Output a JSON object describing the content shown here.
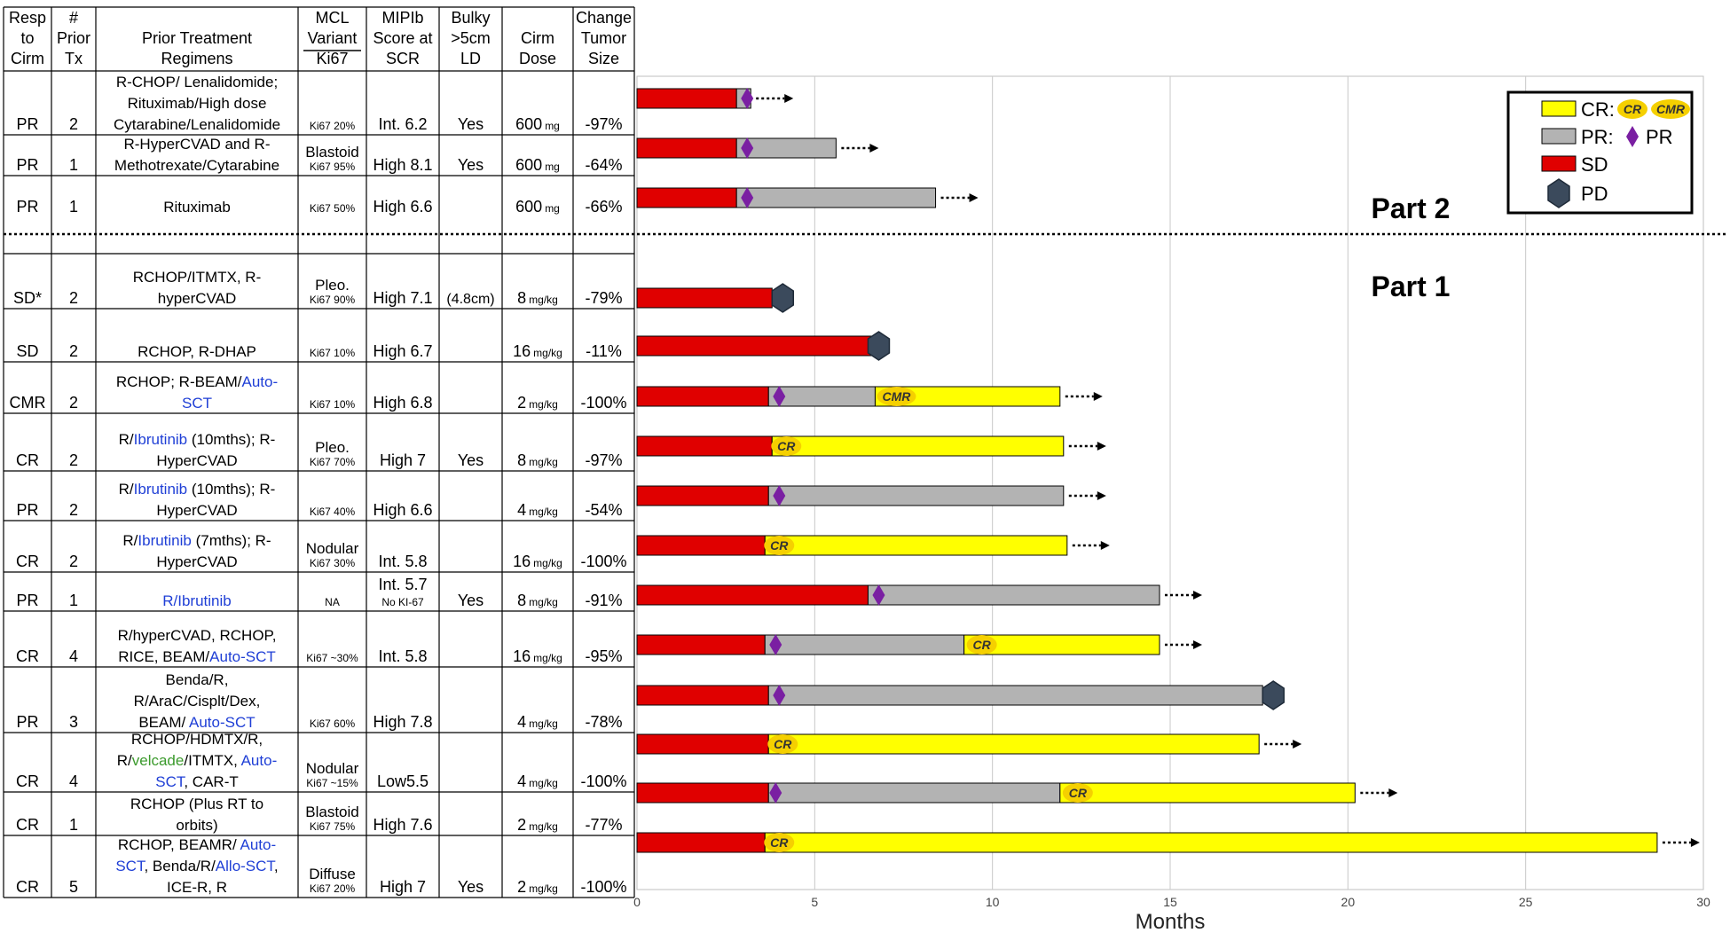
{
  "table": {
    "headers": [
      [
        "Resp",
        "to",
        "Cirm"
      ],
      [
        "#",
        "Prior",
        "Tx"
      ],
      [
        "Prior Treatment",
        "Regimens"
      ],
      [
        "MCL",
        "Variant",
        "Ki67"
      ],
      [
        "MIPIb",
        "Score at",
        "SCR"
      ],
      [
        "Bulky",
        ">5cm",
        "LD"
      ],
      [
        "Cirm",
        "Dose"
      ],
      [
        "Change",
        "Tumor",
        "Size"
      ]
    ],
    "rows": [
      {
        "resp": "PR",
        "prior": "2",
        "regimen": [
          [
            {
              "t": "R-CHOP/ Lenalidomide;"
            }
          ],
          [
            {
              "t": "Rituximab/High dose"
            }
          ],
          [
            {
              "t": "Cytarabine/Lenalidomide"
            }
          ]
        ],
        "variant": [],
        "ki67": "Ki67 20%",
        "mipi": "Int. 6.2",
        "mipi_sub": "",
        "bulky": "Yes",
        "dose": "600",
        "dose_unit": "mg",
        "change": "-97%"
      },
      {
        "resp": "PR",
        "prior": "1",
        "regimen": [
          [
            {
              "t": "R-HyperCVAD and R-"
            }
          ],
          [
            {
              "t": "Methotrexate/Cytarabine"
            }
          ]
        ],
        "variant": [
          "Blastoid"
        ],
        "ki67": "Ki67 95%",
        "mipi": "High 8.1",
        "mipi_sub": "",
        "bulky": "Yes",
        "dose": "600",
        "dose_unit": "mg",
        "change": "-64%"
      },
      {
        "resp": "PR",
        "prior": "1",
        "regimen": [
          [
            {
              "t": "Rituximab"
            }
          ]
        ],
        "variant": [],
        "ki67": "Ki67 50%",
        "mipi": "High 6.6",
        "mipi_sub": "",
        "bulky": "",
        "dose": "600",
        "dose_unit": "mg",
        "change": "-66%"
      },
      {
        "resp": "SD*",
        "prior": "2",
        "regimen": [
          [
            {
              "t": "RCHOP/ITMTX, R-"
            }
          ],
          [
            {
              "t": "hyperCVAD"
            }
          ]
        ],
        "variant": [
          "Pleo."
        ],
        "ki67": "Ki67 90%",
        "mipi": "High 7.1",
        "mipi_sub": "",
        "bulky": "(4.8cm)",
        "dose": "8",
        "dose_unit": "mg/kg",
        "change": "-79%"
      },
      {
        "resp": "SD",
        "prior": "2",
        "regimen": [
          [
            {
              "t": "RCHOP, R-DHAP"
            }
          ]
        ],
        "variant": [],
        "ki67": "Ki67 10%",
        "mipi": "High 6.7",
        "mipi_sub": "",
        "bulky": "",
        "dose": "16",
        "dose_unit": "mg/kg",
        "change": "-11%"
      },
      {
        "resp": "CMR",
        "prior": "2",
        "regimen": [
          [
            {
              "t": "RCHOP; R-BEAM/"
            },
            {
              "t": "Auto-",
              "c": "blue"
            }
          ],
          [
            {
              "t": "SCT",
              "c": "blue"
            }
          ]
        ],
        "variant": [],
        "ki67": "Ki67 10%",
        "mipi": "High 6.8",
        "mipi_sub": "",
        "bulky": "",
        "dose": "2",
        "dose_unit": "mg/kg",
        "change": "-100%"
      },
      {
        "resp": "CR",
        "prior": "2",
        "regimen": [
          [
            {
              "t": "R/"
            },
            {
              "t": "Ibrutinib",
              "c": "blue"
            },
            {
              "t": " (10mths); R-"
            }
          ],
          [
            {
              "t": "HyperCVAD"
            }
          ]
        ],
        "variant": [
          "Pleo."
        ],
        "ki67": "Ki67 70%",
        "mipi": "High 7",
        "mipi_sub": "",
        "bulky": "Yes",
        "dose": "8",
        "dose_unit": "mg/kg",
        "change": "-97%"
      },
      {
        "resp": "PR",
        "prior": "2",
        "regimen": [
          [
            {
              "t": "R/"
            },
            {
              "t": "Ibrutinib",
              "c": "blue"
            },
            {
              "t": " (10mths); R-"
            }
          ],
          [
            {
              "t": "HyperCVAD"
            }
          ]
        ],
        "variant": [],
        "ki67": "Ki67 40%",
        "mipi": "High 6.6",
        "mipi_sub": "",
        "bulky": "",
        "dose": "4",
        "dose_unit": "mg/kg",
        "change": "-54%"
      },
      {
        "resp": "CR",
        "prior": "2",
        "regimen": [
          [
            {
              "t": "R/"
            },
            {
              "t": "Ibrutinib",
              "c": "blue"
            },
            {
              "t": " (7mths); R-"
            }
          ],
          [
            {
              "t": "HyperCVAD"
            }
          ]
        ],
        "variant": [
          "Nodular"
        ],
        "ki67": "Ki67 30%",
        "mipi": "Int. 5.8",
        "mipi_sub": "",
        "bulky": "",
        "dose": "16",
        "dose_unit": "mg/kg",
        "change": "-100%"
      },
      {
        "resp": "PR",
        "prior": "1",
        "regimen": [
          [
            {
              "t": "R/",
              "c": "blue"
            },
            {
              "t": "Ibrutinib",
              "c": "blue"
            }
          ]
        ],
        "variant": [],
        "ki67": "NA",
        "mipi": "Int. 5.7",
        "mipi_sub": "No KI-67",
        "bulky": "Yes",
        "dose": "8",
        "dose_unit": "mg/kg",
        "change": "-91%"
      },
      {
        "resp": "CR",
        "prior": "4",
        "regimen": [
          [
            {
              "t": "R/hyperCVAD, RCHOP,"
            }
          ],
          [
            {
              "t": "RICE, BEAM/"
            },
            {
              "t": "Auto-SCT",
              "c": "blue"
            }
          ]
        ],
        "variant": [],
        "ki67": "Ki67 ~30%",
        "mipi": "Int. 5.8",
        "mipi_sub": "",
        "bulky": "",
        "dose": "16",
        "dose_unit": "mg/kg",
        "change": "-95%"
      },
      {
        "resp": "PR",
        "prior": "3",
        "regimen": [
          [
            {
              "t": "Benda/R,"
            }
          ],
          [
            {
              "t": "R/AraC/Cisplt/Dex,"
            }
          ],
          [
            {
              "t": "BEAM/ "
            },
            {
              "t": "Auto-SCT",
              "c": "blue"
            }
          ]
        ],
        "variant": [],
        "ki67": "Ki67 60%",
        "mipi": "High 7.8",
        "mipi_sub": "",
        "bulky": "",
        "dose": "4",
        "dose_unit": "mg/kg",
        "change": "-78%"
      },
      {
        "resp": "CR",
        "prior": "4",
        "regimen": [
          [
            {
              "t": "RCHOP/HDMTX/R,"
            }
          ],
          [
            {
              "t": "R/"
            },
            {
              "t": "velcade",
              "c": "green"
            },
            {
              "t": "/ITMTX, "
            },
            {
              "t": "Auto-",
              "c": "blue"
            }
          ],
          [
            {
              "t": "SCT",
              "c": "blue"
            },
            {
              "t": ", CAR-T"
            }
          ]
        ],
        "variant": [
          "Nodular"
        ],
        "ki67": "Ki67 ~15%",
        "mipi": "Low5.5",
        "mipi_sub": "",
        "bulky": "",
        "dose": "4",
        "dose_unit": "mg/kg",
        "change": "-100%"
      },
      {
        "resp": "CR",
        "prior": "1",
        "regimen": [
          [
            {
              "t": "RCHOP (Plus RT to"
            }
          ],
          [
            {
              "t": "orbits)"
            }
          ]
        ],
        "variant": [
          "Blastoid"
        ],
        "ki67": "Ki67 75%",
        "mipi": "High 7.6",
        "mipi_sub": "",
        "bulky": "",
        "dose": "2",
        "dose_unit": "mg/kg",
        "change": "-77%"
      },
      {
        "resp": "CR",
        "prior": "5",
        "regimen": [
          [
            {
              "t": "RCHOP, BEAMR/ "
            },
            {
              "t": "Auto-",
              "c": "blue"
            }
          ],
          [
            {
              "t": "SCT",
              "c": "blue"
            },
            {
              "t": ", Benda/R/"
            },
            {
              "t": "Allo-SCT",
              "c": "blue"
            },
            {
              "t": ","
            }
          ],
          [
            {
              "t": "ICE-R, R"
            }
          ]
        ],
        "variant": [
          "Diffuse"
        ],
        "ki67": "Ki67 20%",
        "mipi": "High 7",
        "mipi_sub": "",
        "bulky": "Yes",
        "dose": "2",
        "dose_unit": "mg/kg",
        "change": "-100%"
      }
    ]
  },
  "chart_data": {
    "type": "bar",
    "orientation": "horizontal-stacked",
    "xlabel": "Months",
    "xlim": [
      0,
      30
    ],
    "xticks": [
      0,
      5,
      10,
      15,
      20,
      25,
      30
    ],
    "grid": "vertical",
    "section_labels": [
      "Part 2",
      "Part 1"
    ],
    "colors": {
      "SD": "#e00000",
      "PR": "#b3b3b3",
      "CR": "#ffff00",
      "PD": "#3b4a5c",
      "PR_marker": "#7a1fa2",
      "CR_badge": "#f5d000",
      "border": "#000000"
    },
    "legend": {
      "placement": "top-right",
      "entries": [
        {
          "label": "CR:",
          "swatch": "CR",
          "badges": [
            "CR",
            "CMR"
          ]
        },
        {
          "label": "PR:",
          "swatch": "PR",
          "marker_label": "PR"
        },
        {
          "label": "SD",
          "swatch": "SD"
        },
        {
          "label": "PD",
          "swatch": "PD"
        }
      ]
    },
    "series": [
      {
        "sd": [
          0,
          2.8
        ],
        "pr": [
          2.8,
          3.2
        ],
        "cr": null,
        "pr_marker": 3.1,
        "badge": null,
        "pd": null,
        "ongoing": true
      },
      {
        "sd": [
          0,
          2.8
        ],
        "pr": [
          2.8,
          5.6
        ],
        "cr": null,
        "pr_marker": 3.1,
        "badge": null,
        "pd": null,
        "ongoing": true
      },
      {
        "sd": [
          0,
          2.8
        ],
        "pr": [
          2.8,
          8.4
        ],
        "cr": null,
        "pr_marker": 3.1,
        "badge": null,
        "pd": null,
        "ongoing": true
      },
      {
        "sd": [
          0,
          3.8
        ],
        "pr": null,
        "cr": null,
        "pr_marker": null,
        "badge": null,
        "pd": 4.1,
        "ongoing": false
      },
      {
        "sd": [
          0,
          6.6
        ],
        "pr": null,
        "cr": null,
        "pr_marker": null,
        "badge": null,
        "pd": 6.8,
        "ongoing": false
      },
      {
        "sd": [
          0,
          3.7
        ],
        "pr": [
          3.7,
          6.7
        ],
        "cr": [
          6.7,
          11.9
        ],
        "pr_marker": 4.0,
        "badge": {
          "label": "CMR",
          "x": 7.3
        },
        "pd": null,
        "ongoing": true
      },
      {
        "sd": [
          0,
          3.8
        ],
        "pr": null,
        "cr": [
          3.8,
          12.0
        ],
        "pr_marker": null,
        "badge": {
          "label": "CR",
          "x": 4.2
        },
        "pd": null,
        "ongoing": true
      },
      {
        "sd": [
          0,
          3.7
        ],
        "pr": [
          3.7,
          12.0
        ],
        "cr": null,
        "pr_marker": 4.0,
        "badge": null,
        "pd": null,
        "ongoing": true
      },
      {
        "sd": [
          0,
          3.6
        ],
        "pr": null,
        "cr": [
          3.6,
          12.1
        ],
        "pr_marker": null,
        "badge": {
          "label": "CR",
          "x": 4.0
        },
        "pd": null,
        "ongoing": true
      },
      {
        "sd": [
          0,
          6.5
        ],
        "pr": [
          6.5,
          14.7
        ],
        "cr": null,
        "pr_marker": 6.8,
        "badge": null,
        "pd": null,
        "ongoing": true
      },
      {
        "sd": [
          0,
          3.6
        ],
        "pr": [
          3.6,
          9.2
        ],
        "cr": [
          9.2,
          14.7
        ],
        "pr_marker": 3.9,
        "badge": {
          "label": "CR",
          "x": 9.7
        },
        "pd": null,
        "ongoing": true
      },
      {
        "sd": [
          0,
          3.7
        ],
        "pr": [
          3.7,
          17.6
        ],
        "cr": null,
        "pr_marker": 4.0,
        "badge": null,
        "pd": 17.9,
        "ongoing": false
      },
      {
        "sd": [
          0,
          3.7
        ],
        "pr": null,
        "cr": [
          3.7,
          17.5
        ],
        "pr_marker": null,
        "badge": {
          "label": "CR",
          "x": 4.1
        },
        "pd": null,
        "ongoing": true
      },
      {
        "sd": [
          0,
          3.7
        ],
        "pr": [
          3.7,
          11.9
        ],
        "cr": [
          11.9,
          20.2
        ],
        "pr_marker": 3.9,
        "badge": {
          "label": "CR",
          "x": 12.4
        },
        "pd": null,
        "ongoing": true
      },
      {
        "sd": [
          0,
          3.6
        ],
        "pr": null,
        "cr": [
          3.6,
          28.7
        ],
        "pr_marker": null,
        "badge": {
          "label": "CR",
          "x": 4.0
        },
        "pd": null,
        "ongoing": true
      }
    ]
  }
}
